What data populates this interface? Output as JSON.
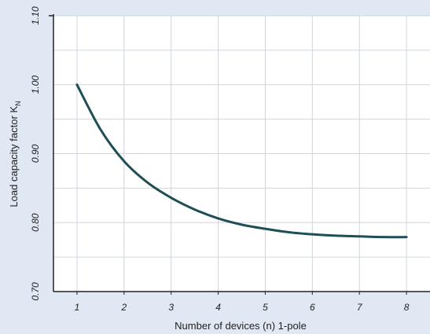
{
  "chart_data": {
    "type": "line",
    "title": "",
    "xlabel": "Number of devices (n) 1-pole",
    "ylabel_main": "Load capacity factor K",
    "ylabel_sub": "N",
    "xlim": [
      0.5,
      8.5
    ],
    "ylim": [
      0.7,
      1.1
    ],
    "xticks": [
      "1",
      "2",
      "3",
      "4",
      "5",
      "6",
      "7",
      "8"
    ],
    "yticks": [
      "0.70",
      "0.80",
      "0.90",
      "1.00",
      "1.10"
    ],
    "grid": true,
    "colors": {
      "line": "#1f4f55",
      "grid": "#c9d6e4",
      "axis": "#222222",
      "plot_bg": "#ffffff",
      "page_bg": "#dfe8f3"
    },
    "series": [
      {
        "x": [
          1,
          1.5,
          2,
          2.5,
          3,
          3.5,
          4,
          4.5,
          5,
          5.5,
          6,
          6.5,
          7,
          7.5,
          8
        ],
        "values": [
          1.0,
          0.935,
          0.889,
          0.858,
          0.836,
          0.819,
          0.806,
          0.797,
          0.791,
          0.786,
          0.783,
          0.781,
          0.78,
          0.779,
          0.779
        ]
      }
    ]
  }
}
